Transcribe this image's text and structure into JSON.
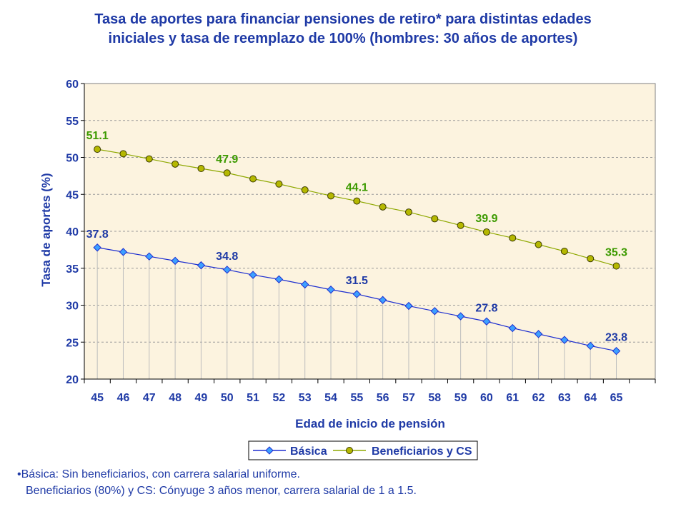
{
  "title": {
    "line1": "Tasa de aportes para financiar pensiones de retiro* para distintas edades",
    "line2": "iniciales y tasa de reemplazo de 100% (hombres: 30 años de aportes)"
  },
  "notes": {
    "line1": "•Básica: Sin beneficiarios, con carrera salarial uniforme.",
    "line2": "Beneficiarios (80%) y CS: Cónyuge 3 años menor, carrera salarial de 1 a 1.5."
  },
  "colors": {
    "title": "#1f3aa6",
    "plot_bg": "#fcf3df",
    "basica": "#1e2fd0",
    "beneficiarios": "#8ea800",
    "label_blue": "#1f3aa6",
    "label_green": "#3c9a00"
  },
  "chart_data": {
    "type": "line",
    "title": "Tasa de aportes para financiar pensiones de retiro* para distintas edades iniciales y tasa de reemplazo de 100% (hombres: 30 años de aportes)",
    "xlabel": "Edad de inicio de pensión",
    "ylabel": "Tasa de aportes (%)",
    "ylim": [
      20,
      60
    ],
    "yticks": [
      20,
      25,
      30,
      35,
      40,
      45,
      50,
      55,
      60
    ],
    "grid": true,
    "legend_position": "bottom",
    "x": [
      45,
      46,
      47,
      48,
      49,
      50,
      51,
      52,
      53,
      54,
      55,
      56,
      57,
      58,
      59,
      60,
      61,
      62,
      63,
      64,
      65
    ],
    "series": [
      {
        "name": "Básica",
        "values": [
          37.8,
          37.2,
          36.6,
          36.0,
          35.4,
          34.8,
          34.1,
          33.5,
          32.8,
          32.1,
          31.5,
          30.7,
          29.9,
          29.2,
          28.5,
          27.8,
          26.9,
          26.1,
          25.3,
          24.5,
          23.8
        ],
        "labels": {
          "45": "37.8",
          "50": "34.8",
          "55": "31.5",
          "60": "27.8",
          "65": "23.8"
        }
      },
      {
        "name": "Beneficiarios y CS",
        "values": [
          51.1,
          50.5,
          49.8,
          49.1,
          48.5,
          47.9,
          47.1,
          46.4,
          45.6,
          44.8,
          44.1,
          43.3,
          42.6,
          41.7,
          40.8,
          39.9,
          39.1,
          38.2,
          37.3,
          36.3,
          35.3
        ],
        "labels": {
          "45": "51.1",
          "50": "47.9",
          "55": "44.1",
          "60": "39.9",
          "65": "35.3"
        }
      }
    ]
  }
}
